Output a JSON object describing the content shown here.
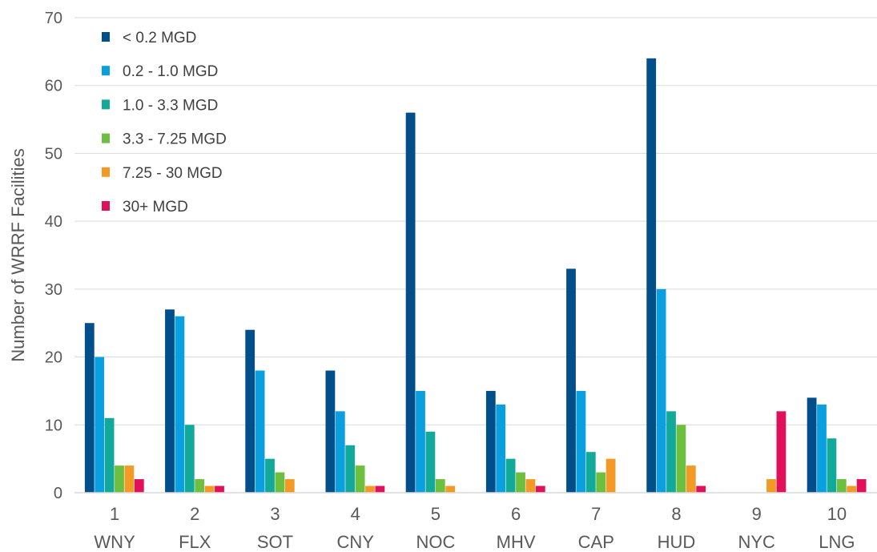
{
  "chart_data": {
    "type": "bar",
    "title": "",
    "xlabel": "",
    "ylabel": "Number of WRRF Facilities",
    "ylim": [
      0,
      70
    ],
    "yticks": [
      0,
      10,
      20,
      30,
      40,
      50,
      60,
      70
    ],
    "grid": true,
    "legend_position": "top-left",
    "categories": [
      {
        "number": "1",
        "code": "WNY"
      },
      {
        "number": "2",
        "code": "FLX"
      },
      {
        "number": "3",
        "code": "SOT"
      },
      {
        "number": "4",
        "code": "CNY"
      },
      {
        "number": "5",
        "code": "NOC"
      },
      {
        "number": "6",
        "code": "MHV"
      },
      {
        "number": "7",
        "code": "CAP"
      },
      {
        "number": "8",
        "code": "HUD"
      },
      {
        "number": "9",
        "code": "NYC"
      },
      {
        "number": "10",
        "code": "LNG"
      }
    ],
    "series": [
      {
        "name": "< 0.2 MGD",
        "color": "#004f8a",
        "values": [
          25,
          27,
          24,
          18,
          56,
          15,
          33,
          64,
          0,
          14
        ]
      },
      {
        "name": "0.2 - 1.0 MGD",
        "color": "#0aa0e0",
        "values": [
          20,
          26,
          18,
          12,
          15,
          13,
          15,
          30,
          0,
          13
        ]
      },
      {
        "name": "1.0 - 3.3 MGD",
        "color": "#12a99b",
        "values": [
          11,
          10,
          5,
          7,
          9,
          5,
          6,
          12,
          0,
          8
        ]
      },
      {
        "name": "3.3 - 7.25 MGD",
        "color": "#6cbf3f",
        "values": [
          4,
          2,
          3,
          4,
          2,
          3,
          3,
          10,
          0,
          2
        ]
      },
      {
        "name": "7.25 - 30 MGD",
        "color": "#f39a26",
        "values": [
          4,
          1,
          2,
          1,
          1,
          2,
          5,
          4,
          2,
          1
        ]
      },
      {
        "name": "30+ MGD",
        "color": "#e0105a",
        "values": [
          2,
          1,
          0,
          1,
          0,
          1,
          0,
          1,
          12,
          2
        ]
      }
    ]
  }
}
